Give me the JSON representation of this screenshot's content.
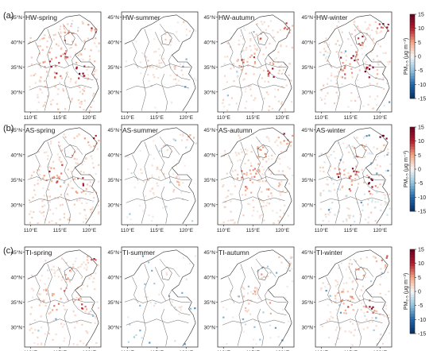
{
  "chart_data": [
    {
      "type": "heatmap",
      "row_label": "(a)",
      "panels": [
        "HW-spring",
        "HW-summer",
        "HW-autumn",
        "HW-winter"
      ],
      "colorbar": {
        "label": "PM₂.₅ (μg m⁻³)",
        "range": [
          -15,
          15
        ],
        "ticks": [
          "15",
          "10",
          "5",
          "0",
          "-5",
          "-10",
          "-15"
        ]
      }
    },
    {
      "type": "heatmap",
      "row_label": "(b)",
      "panels": [
        "AS-spring",
        "AS-summer",
        "AS-autumn",
        "AS-winter"
      ],
      "colorbar": {
        "label": "PM₂.₅ (μg m⁻³)",
        "range": [
          -15,
          15
        ],
        "ticks": [
          "15",
          "10",
          "5",
          "0",
          "-5",
          "-10",
          "-15"
        ]
      }
    },
    {
      "type": "heatmap",
      "row_label": "(c)",
      "panels": [
        "TI-spring",
        "TI-summer",
        "TI-autumn",
        "TI-winter"
      ],
      "colorbar": {
        "label": "PM₂.₅ (μg m⁻³)",
        "range": [
          -15,
          15
        ],
        "ticks": [
          "15",
          "10",
          "5",
          "0",
          "-5",
          "-10",
          "-15"
        ]
      }
    }
  ],
  "axes": {
    "lat_ticks": [
      "45°N",
      "40°N",
      "35°N",
      "30°N"
    ],
    "lon_ticks": [
      "110°E",
      "115°E",
      "120°E"
    ]
  },
  "colors": {
    "positive": "#67001f",
    "zero": "#f7f7f7",
    "negative": "#053061",
    "boundary": "#333333"
  }
}
